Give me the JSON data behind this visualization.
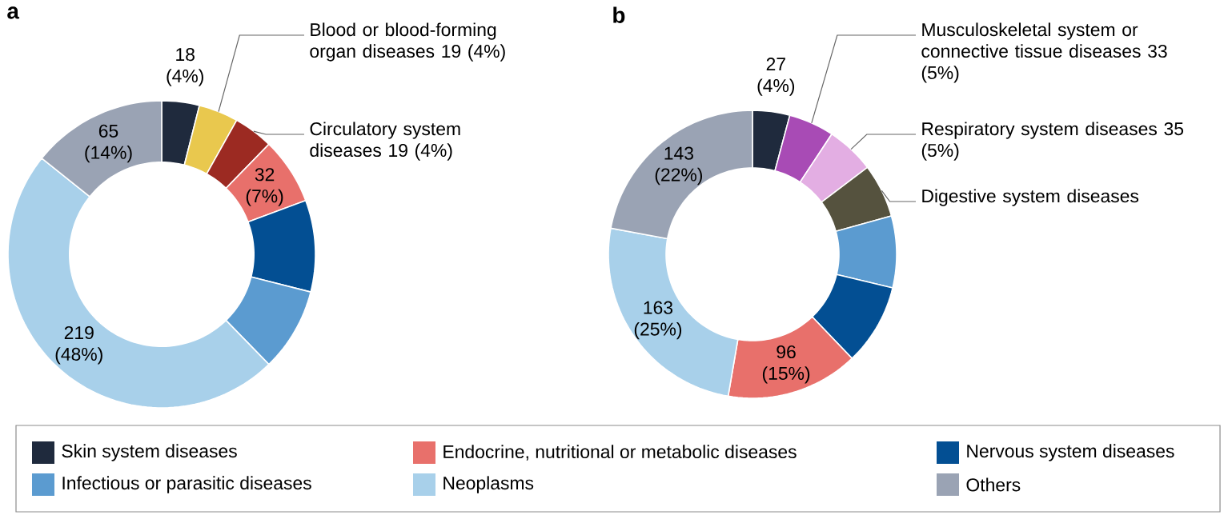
{
  "chart_data": [
    {
      "type": "donut",
      "title": "a",
      "legend": "bottom",
      "categories": [
        "Skin system diseases",
        "Blood or blood-forming organ diseases",
        "Circulatory system diseases",
        "Endocrine, nutritional or metabolic diseases",
        "Nervous system diseases",
        "Infectious or parasitic diseases",
        "Neoplasms",
        "Others"
      ],
      "values": [
        18,
        19,
        19,
        32,
        44,
        40,
        219,
        65
      ],
      "value_labels": [
        "18 (4%)",
        "19 (4%)",
        "19 (4%)",
        "32 (7%)",
        null,
        null,
        "219 (48%)",
        "65 (14%)"
      ],
      "colors": [
        "#1f2a3d",
        "#e9c84e",
        "#9c2a22",
        "#e8706b",
        "#034f93",
        "#5b9bd0",
        "#a8d0ea",
        "#9aa3b4"
      ]
    },
    {
      "type": "donut",
      "title": "b",
      "categories": [
        null,
        "Musculoskeletal system or connective tissue diseases",
        "Respiratory system diseases",
        "Digestive system diseases",
        null,
        null,
        null,
        null,
        null
      ],
      "values": [
        27,
        33,
        35,
        39,
        52,
        59,
        96,
        163,
        143
      ],
      "value_labels": [
        "27 (4%)",
        "33 (5%)",
        "35 (5%)",
        null,
        null,
        null,
        "96 (15%)",
        "163 (25%)",
        "143 (22%)"
      ],
      "colors": [
        "#1f2a3d",
        "#a84bb5",
        "#e3aee3",
        "#55523e",
        "#5b9bd0",
        "#034f93",
        "#e8706b",
        "#a8d0ea",
        "#9aa3b4"
      ]
    }
  ]
}
